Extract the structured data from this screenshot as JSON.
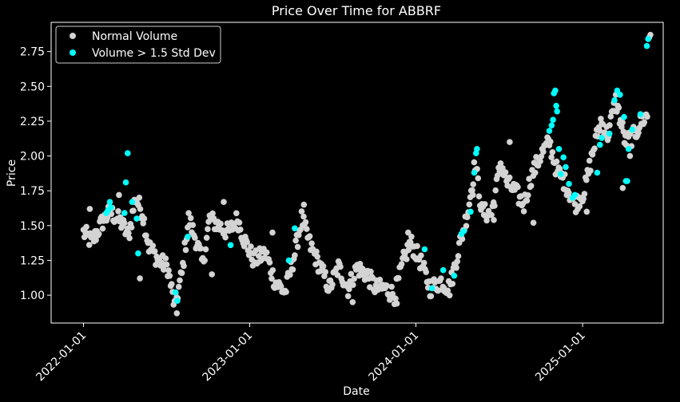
{
  "chart_data": {
    "type": "scatter",
    "title": "Price Over Time for ABBRF",
    "xlabel": "Date",
    "ylabel": "Price",
    "x_type": "date",
    "xlim": [
      "2021-10-22",
      "2025-06-27"
    ],
    "ylim": [
      0.8,
      2.96
    ],
    "xticks": [
      "2022-01-01",
      "2023-01-01",
      "2024-01-01",
      "2025-01-01"
    ],
    "yticks": [
      "1.00",
      "1.25",
      "1.50",
      "1.75",
      "2.00",
      "2.25",
      "2.50",
      "2.75"
    ],
    "grid": false,
    "legend_position": "top-left",
    "background": "#000000",
    "series": [
      {
        "name": "Normal Volume",
        "color": "#d3d3d3",
        "anchors": [
          [
            "2022-01-01",
            1.45
          ],
          [
            "2022-01-20",
            1.38
          ],
          [
            "2022-02-10",
            1.52
          ],
          [
            "2022-03-01",
            1.6
          ],
          [
            "2022-03-25",
            1.52
          ],
          [
            "2022-04-10",
            1.42
          ],
          [
            "2022-04-25",
            1.7
          ],
          [
            "2022-05-10",
            1.6
          ],
          [
            "2022-05-25",
            1.35
          ],
          [
            "2022-06-15",
            1.25
          ],
          [
            "2022-07-05",
            1.2
          ],
          [
            "2022-07-20",
            0.92
          ],
          [
            "2022-08-05",
            1.15
          ],
          [
            "2022-08-20",
            1.55
          ],
          [
            "2022-09-05",
            1.4
          ],
          [
            "2022-09-20",
            1.22
          ],
          [
            "2022-10-05",
            1.55
          ],
          [
            "2022-10-25",
            1.5
          ],
          [
            "2022-11-15",
            1.45
          ],
          [
            "2022-12-05",
            1.55
          ],
          [
            "2022-12-20",
            1.4
          ],
          [
            "2023-01-10",
            1.25
          ],
          [
            "2023-02-05",
            1.3
          ],
          [
            "2023-02-25",
            1.1
          ],
          [
            "2023-03-20",
            1.02
          ],
          [
            "2023-04-10",
            1.3
          ],
          [
            "2023-04-25",
            1.55
          ],
          [
            "2023-05-15",
            1.35
          ],
          [
            "2023-06-05",
            1.2
          ],
          [
            "2023-06-25",
            1.05
          ],
          [
            "2023-07-15",
            1.2
          ],
          [
            "2023-08-05",
            1.05
          ],
          [
            "2023-08-25",
            1.2
          ],
          [
            "2023-09-15",
            1.15
          ],
          [
            "2023-10-05",
            1.05
          ],
          [
            "2023-10-25",
            1.05
          ],
          [
            "2023-11-15",
            1.0
          ],
          [
            "2023-12-05",
            1.25
          ],
          [
            "2023-12-20",
            1.38
          ],
          [
            "2024-01-10",
            1.25
          ],
          [
            "2024-02-01",
            1.05
          ],
          [
            "2024-02-25",
            1.1
          ],
          [
            "2024-03-15",
            1.05
          ],
          [
            "2024-04-05",
            1.35
          ],
          [
            "2024-04-25",
            1.62
          ],
          [
            "2024-05-10",
            1.95
          ],
          [
            "2024-05-25",
            1.6
          ],
          [
            "2024-06-15",
            1.58
          ],
          [
            "2024-07-05",
            1.95
          ],
          [
            "2024-07-20",
            1.8
          ],
          [
            "2024-08-05",
            1.75
          ],
          [
            "2024-08-25",
            1.65
          ],
          [
            "2024-09-10",
            1.85
          ],
          [
            "2024-09-30",
            2.0
          ],
          [
            "2024-10-20",
            2.1
          ],
          [
            "2024-11-05",
            1.9
          ],
          [
            "2024-11-25",
            1.8
          ],
          [
            "2024-12-15",
            1.65
          ],
          [
            "2025-01-05",
            1.75
          ],
          [
            "2025-01-25",
            2.05
          ],
          [
            "2025-02-10",
            2.25
          ],
          [
            "2025-02-25",
            2.15
          ],
          [
            "2025-03-15",
            2.4
          ],
          [
            "2025-04-05",
            2.1
          ],
          [
            "2025-04-25",
            2.15
          ],
          [
            "2025-05-10",
            2.25
          ],
          [
            "2025-05-25",
            2.3
          ]
        ],
        "extra_points": [
          [
            "2022-01-15",
            1.62
          ],
          [
            "2022-03-20",
            1.72
          ],
          [
            "2022-05-05",
            1.12
          ],
          [
            "2022-07-25",
            0.87
          ],
          [
            "2022-10-10",
            1.15
          ],
          [
            "2022-11-05",
            1.67
          ],
          [
            "2023-02-20",
            1.45
          ],
          [
            "2023-04-30",
            1.65
          ],
          [
            "2023-08-15",
            0.95
          ],
          [
            "2023-11-20",
            0.94
          ],
          [
            "2023-12-15",
            1.45
          ],
          [
            "2024-05-05",
            1.72
          ],
          [
            "2024-06-20",
            1.54
          ],
          [
            "2024-07-25",
            2.1
          ],
          [
            "2024-09-15",
            1.52
          ],
          [
            "2024-10-05",
            2.05
          ],
          [
            "2025-01-10",
            1.6
          ],
          [
            "2025-03-30",
            1.77
          ],
          [
            "2025-04-15",
            2.0
          ],
          [
            "2025-05-30",
            2.87
          ],
          [
            "2025-05-27",
            2.85
          ]
        ]
      },
      {
        "name": "Volume > 1.5 Std Dev",
        "color": "#00ffff",
        "points": [
          [
            "2022-02-20",
            1.59
          ],
          [
            "2022-02-24",
            1.61
          ],
          [
            "2022-02-28",
            1.67
          ],
          [
            "2022-03-02",
            1.63
          ],
          [
            "2022-04-01",
            1.59
          ],
          [
            "2022-04-04",
            1.81
          ],
          [
            "2022-04-08",
            2.02
          ],
          [
            "2022-04-18",
            1.67
          ],
          [
            "2022-04-28",
            1.55
          ],
          [
            "2022-05-01",
            1.3
          ],
          [
            "2022-07-22",
            1.02
          ],
          [
            "2022-07-26",
            0.96
          ],
          [
            "2022-08-18",
            1.42
          ],
          [
            "2022-11-20",
            1.36
          ],
          [
            "2023-03-28",
            1.25
          ],
          [
            "2023-04-10",
            1.48
          ],
          [
            "2024-01-20",
            1.33
          ],
          [
            "2024-02-05",
            1.05
          ],
          [
            "2024-03-01",
            1.18
          ],
          [
            "2024-03-25",
            1.14
          ],
          [
            "2024-04-10",
            1.44
          ],
          [
            "2024-04-15",
            1.46
          ],
          [
            "2024-04-30",
            1.6
          ],
          [
            "2024-05-08",
            1.88
          ],
          [
            "2024-05-12",
            2.02
          ],
          [
            "2024-05-14",
            2.05
          ],
          [
            "2024-10-20",
            2.18
          ],
          [
            "2024-10-25",
            2.22
          ],
          [
            "2024-10-28",
            2.26
          ],
          [
            "2024-10-30",
            2.45
          ],
          [
            "2024-11-02",
            2.47
          ],
          [
            "2024-11-04",
            2.36
          ],
          [
            "2024-11-06",
            2.32
          ],
          [
            "2024-11-10",
            2.05
          ],
          [
            "2024-11-14",
            1.87
          ],
          [
            "2024-11-20",
            1.99
          ],
          [
            "2024-11-25",
            1.92
          ],
          [
            "2024-12-02",
            1.8
          ],
          [
            "2024-12-10",
            1.7
          ],
          [
            "2024-12-15",
            1.72
          ],
          [
            "2025-02-02",
            1.88
          ],
          [
            "2025-02-08",
            2.08
          ],
          [
            "2025-02-12",
            2.13
          ],
          [
            "2025-03-01",
            2.16
          ],
          [
            "2025-03-12",
            2.4
          ],
          [
            "2025-03-18",
            2.47
          ],
          [
            "2025-03-24",
            2.44
          ],
          [
            "2025-04-02",
            2.28
          ],
          [
            "2025-04-06",
            1.82
          ],
          [
            "2025-04-09",
            1.82
          ],
          [
            "2025-04-12",
            2.05
          ],
          [
            "2025-04-20",
            2.19
          ],
          [
            "2025-05-08",
            2.3
          ],
          [
            "2025-05-22",
            2.79
          ],
          [
            "2025-05-25",
            2.84
          ]
        ]
      }
    ]
  }
}
